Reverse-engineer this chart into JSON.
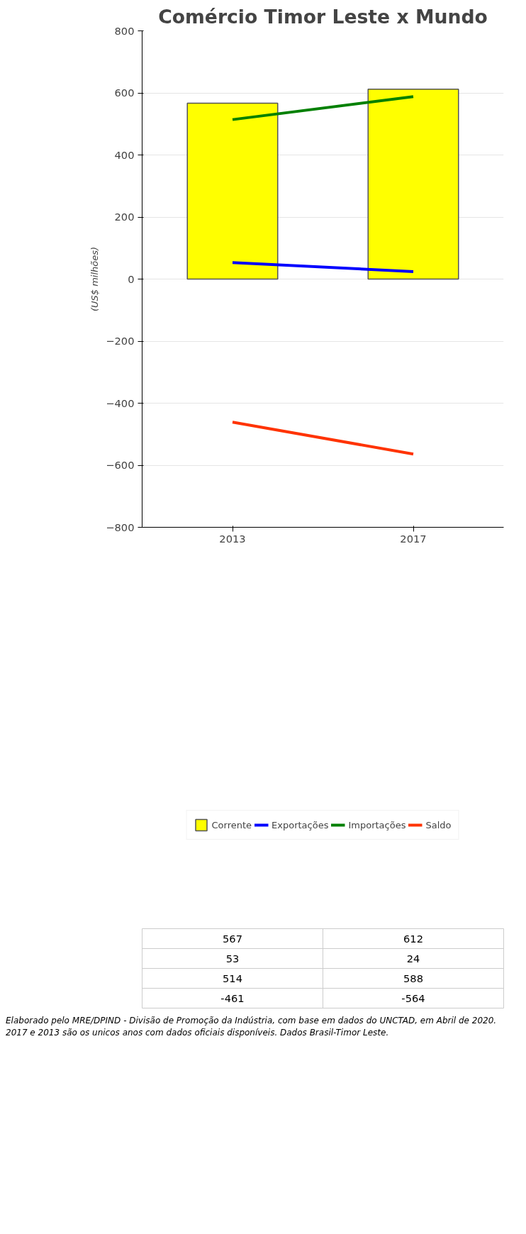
{
  "chart_data": {
    "type": "bar",
    "title": "Comércio Timor Leste x Mundo",
    "ylabel": "(US$ milhões)",
    "categories": [
      "2013",
      "2017"
    ],
    "series": [
      {
        "name": "Corrente",
        "type": "bar",
        "color": "#ffff00",
        "values": [
          567,
          612
        ]
      },
      {
        "name": "Exportações",
        "type": "line",
        "color": "#0000ff",
        "values": [
          53,
          24
        ]
      },
      {
        "name": "Importações",
        "type": "line",
        "color": "#008000",
        "values": [
          514,
          588
        ]
      },
      {
        "name": "Saldo",
        "type": "line",
        "color": "#ff3300",
        "values": [
          -461,
          -564
        ]
      }
    ],
    "ylim": [
      -800,
      800
    ],
    "yticks": [
      -800,
      -600,
      -400,
      -200,
      0,
      200,
      400,
      600,
      800
    ],
    "grid": "y",
    "legend": "bottom",
    "data_labels": true,
    "annotations": [
      "Elaborado pelo MRE/DPIND - Divisão de Promoção  da Indústria, com base em dados do UNCTAD, em Abril de 2020. 2017 e 2013 são os unicos anos com dados oficiais disponíveis. Dados Brasil-Timor Leste."
    ]
  }
}
